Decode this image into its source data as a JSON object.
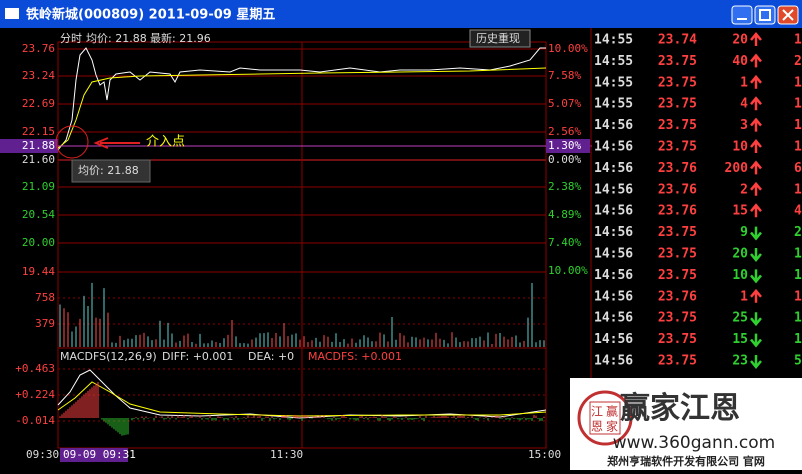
{
  "title_bar": {
    "title": "铁岭新城(000809) 2011-09-09 星期五"
  },
  "chart_header": {
    "mode": "分时",
    "avg": "均价: 21.88",
    "latest": "最新: 21.96",
    "button": "历史重现"
  },
  "price_axis": [
    "23.76",
    "23.24",
    "22.69",
    "22.15",
    "21.60",
    "21.09",
    "20.54",
    "20.00"
  ],
  "cursor_price": "21.88",
  "percent_axis": [
    "10.00%",
    "7.58%",
    "5.07%",
    "2.56%",
    "0.00%",
    "2.38%",
    "4.89%",
    "7.40%",
    "10.00%"
  ],
  "cursor_percent": "1.30%",
  "volume_axis": [
    "19.44",
    "758",
    "379"
  ],
  "annotation": "介入点",
  "tooltip": "均价: 21.88",
  "macd": {
    "label": "MACDFS(12,26,9)",
    "diff": "DIFF: +0.001",
    "dea": "DEA: +0",
    "macdfs": "MACDFS: +0.001",
    "axis": [
      "+0.463",
      "+0.224",
      "-0.014"
    ]
  },
  "time_axis": [
    "09:30",
    "11:30",
    "15:00"
  ],
  "cursor_time": "09-09 09:31",
  "trades": [
    {
      "time": "14:55",
      "price": "23.74",
      "volume": "20",
      "direction": "up",
      "next": "1"
    },
    {
      "time": "14:55",
      "price": "23.75",
      "volume": "40",
      "direction": "up",
      "next": "2"
    },
    {
      "time": "14:55",
      "price": "23.75",
      "volume": "1",
      "direction": "up",
      "next": "1"
    },
    {
      "time": "14:55",
      "price": "23.75",
      "volume": "4",
      "direction": "up",
      "next": "1"
    },
    {
      "time": "14:56",
      "price": "23.75",
      "volume": "3",
      "direction": "up",
      "next": "1"
    },
    {
      "time": "14:56",
      "price": "23.75",
      "volume": "10",
      "direction": "up",
      "next": "1"
    },
    {
      "time": "14:56",
      "price": "23.76",
      "volume": "200",
      "direction": "up",
      "next": "6"
    },
    {
      "time": "14:56",
      "price": "23.76",
      "volume": "2",
      "direction": "up",
      "next": "1"
    },
    {
      "time": "14:56",
      "price": "23.76",
      "volume": "15",
      "direction": "up",
      "next": "4"
    },
    {
      "time": "14:56",
      "price": "23.75",
      "volume": "9",
      "direction": "down",
      "next": "2"
    },
    {
      "time": "14:56",
      "price": "23.75",
      "volume": "20",
      "direction": "down",
      "next": "1"
    },
    {
      "time": "14:56",
      "price": "23.75",
      "volume": "10",
      "direction": "down",
      "next": "1"
    },
    {
      "time": "14:56",
      "price": "23.76",
      "volume": "1",
      "direction": "up",
      "next": "1"
    },
    {
      "time": "14:56",
      "price": "23.75",
      "volume": "25",
      "direction": "down",
      "next": "1"
    },
    {
      "time": "14:56",
      "price": "23.75",
      "volume": "15",
      "direction": "down",
      "next": "1"
    },
    {
      "time": "14:56",
      "price": "23.75",
      "volume": "23",
      "direction": "down",
      "next": "5"
    }
  ],
  "watermark": {
    "stamp": [
      "江",
      "赢",
      "恩",
      "家"
    ],
    "brand": "赢家江恩",
    "url": "www.360gann.com",
    "company": "郑州亨瑞软件开发有限公司 官网"
  }
}
